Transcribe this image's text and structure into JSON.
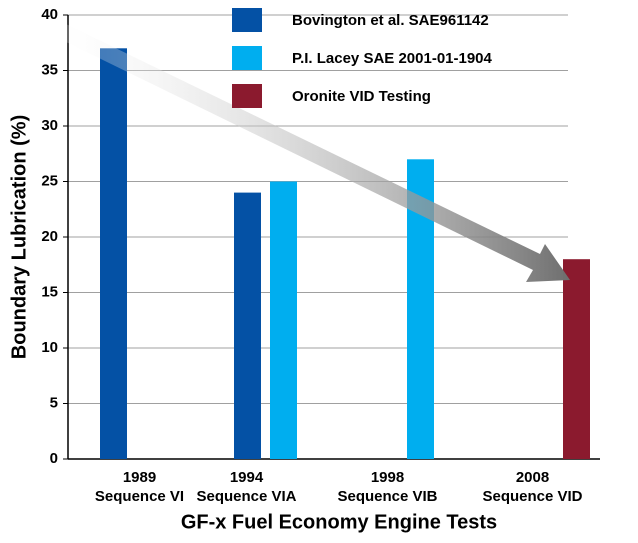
{
  "chart_data": {
    "type": "bar",
    "xlabel": "GF-x Fuel Economy Engine Tests",
    "ylabel": "Boundary Lubrication (%)",
    "categories": [
      [
        "1989",
        "Sequence VI"
      ],
      [
        "1994",
        "Sequence VIA"
      ],
      [
        "1998",
        "Sequence VIB"
      ],
      [
        "2008",
        "Sequence VID"
      ]
    ],
    "series": [
      {
        "name": "Bovington et al. SAE961142",
        "color": "#0451a5",
        "values": [
          37,
          24,
          null,
          null
        ]
      },
      {
        "name": "P.I. Lacey SAE 2001-01-1904",
        "color": "#00aeef",
        "values": [
          null,
          25,
          27,
          null
        ]
      },
      {
        "name": "Oronite VID Testing",
        "color": "#8b1a2e",
        "values": [
          null,
          null,
          null,
          18
        ]
      }
    ],
    "ylim": [
      0,
      40
    ],
    "yticks": [
      0,
      5,
      10,
      15,
      20,
      25,
      30,
      35,
      40
    ],
    "grid": true,
    "legend": "top"
  }
}
